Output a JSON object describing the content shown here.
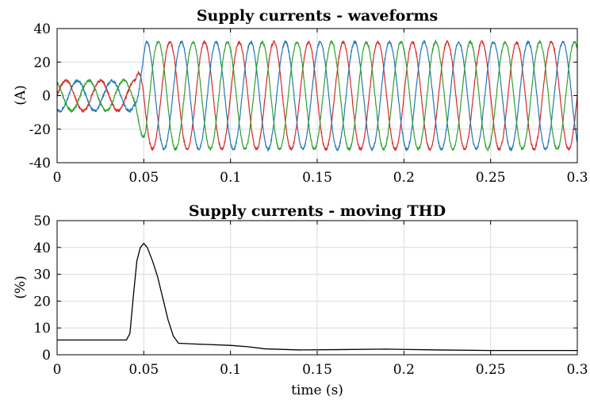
{
  "chart_data": [
    {
      "type": "line",
      "title": "Supply currents - waveforms",
      "xlabel": "",
      "ylabel": "(A)",
      "xlim": [
        0,
        0.3
      ],
      "ylim": [
        -40,
        40
      ],
      "xticks": [
        0,
        0.05,
        0.1,
        0.15,
        0.2,
        0.25,
        0.3
      ],
      "xtick_labels": [
        "0",
        "0.05",
        "0.1",
        "0.15",
        "0.2",
        "0.25",
        "0.3"
      ],
      "yticks": [
        -40,
        -20,
        0,
        20,
        40
      ],
      "ytick_labels": [
        "-40",
        "-20",
        "0",
        "20",
        "40"
      ],
      "grid": true,
      "frequency_hz": 50,
      "step_time_s": 0.045,
      "series": [
        {
          "color": "#d62728",
          "phase_deg": 0,
          "amplitude_before": 9,
          "amplitude_after": 32
        },
        {
          "color": "#1f77b4",
          "phase_deg": -120,
          "amplitude_before": 9,
          "amplitude_after": 32
        },
        {
          "color": "#2ca02c",
          "phase_deg": 120,
          "amplitude_before": 9,
          "amplitude_after": 32
        }
      ]
    },
    {
      "type": "line",
      "title": "Supply currents - moving THD",
      "xlabel": "time (s)",
      "ylabel": "(%)",
      "xlim": [
        0,
        0.3
      ],
      "ylim": [
        0,
        50
      ],
      "xticks": [
        0,
        0.05,
        0.1,
        0.15,
        0.2,
        0.25,
        0.3
      ],
      "xtick_labels": [
        "0",
        "0.05",
        "0.1",
        "0.15",
        "0.2",
        "0.25",
        "0.3"
      ],
      "yticks": [
        0,
        10,
        20,
        30,
        40,
        50
      ],
      "ytick_labels": [
        "0",
        "10",
        "20",
        "30",
        "40",
        "50"
      ],
      "grid": true,
      "series": [
        {
          "color": "#000000",
          "x": [
            0,
            0.02,
            0.04,
            0.042,
            0.044,
            0.046,
            0.048,
            0.05,
            0.052,
            0.055,
            0.058,
            0.061,
            0.064,
            0.067,
            0.07,
            0.08,
            0.1,
            0.11,
            0.12,
            0.14,
            0.16,
            0.19,
            0.22,
            0.25,
            0.28,
            0.3
          ],
          "y": [
            5.5,
            5.5,
            5.5,
            8,
            22,
            35,
            40,
            41.5,
            40,
            35,
            29,
            21,
            13,
            7,
            4.3,
            4,
            3.5,
            3,
            2.2,
            1.8,
            1.9,
            2.1,
            1.8,
            1.6,
            1.6,
            1.6
          ]
        }
      ]
    }
  ]
}
